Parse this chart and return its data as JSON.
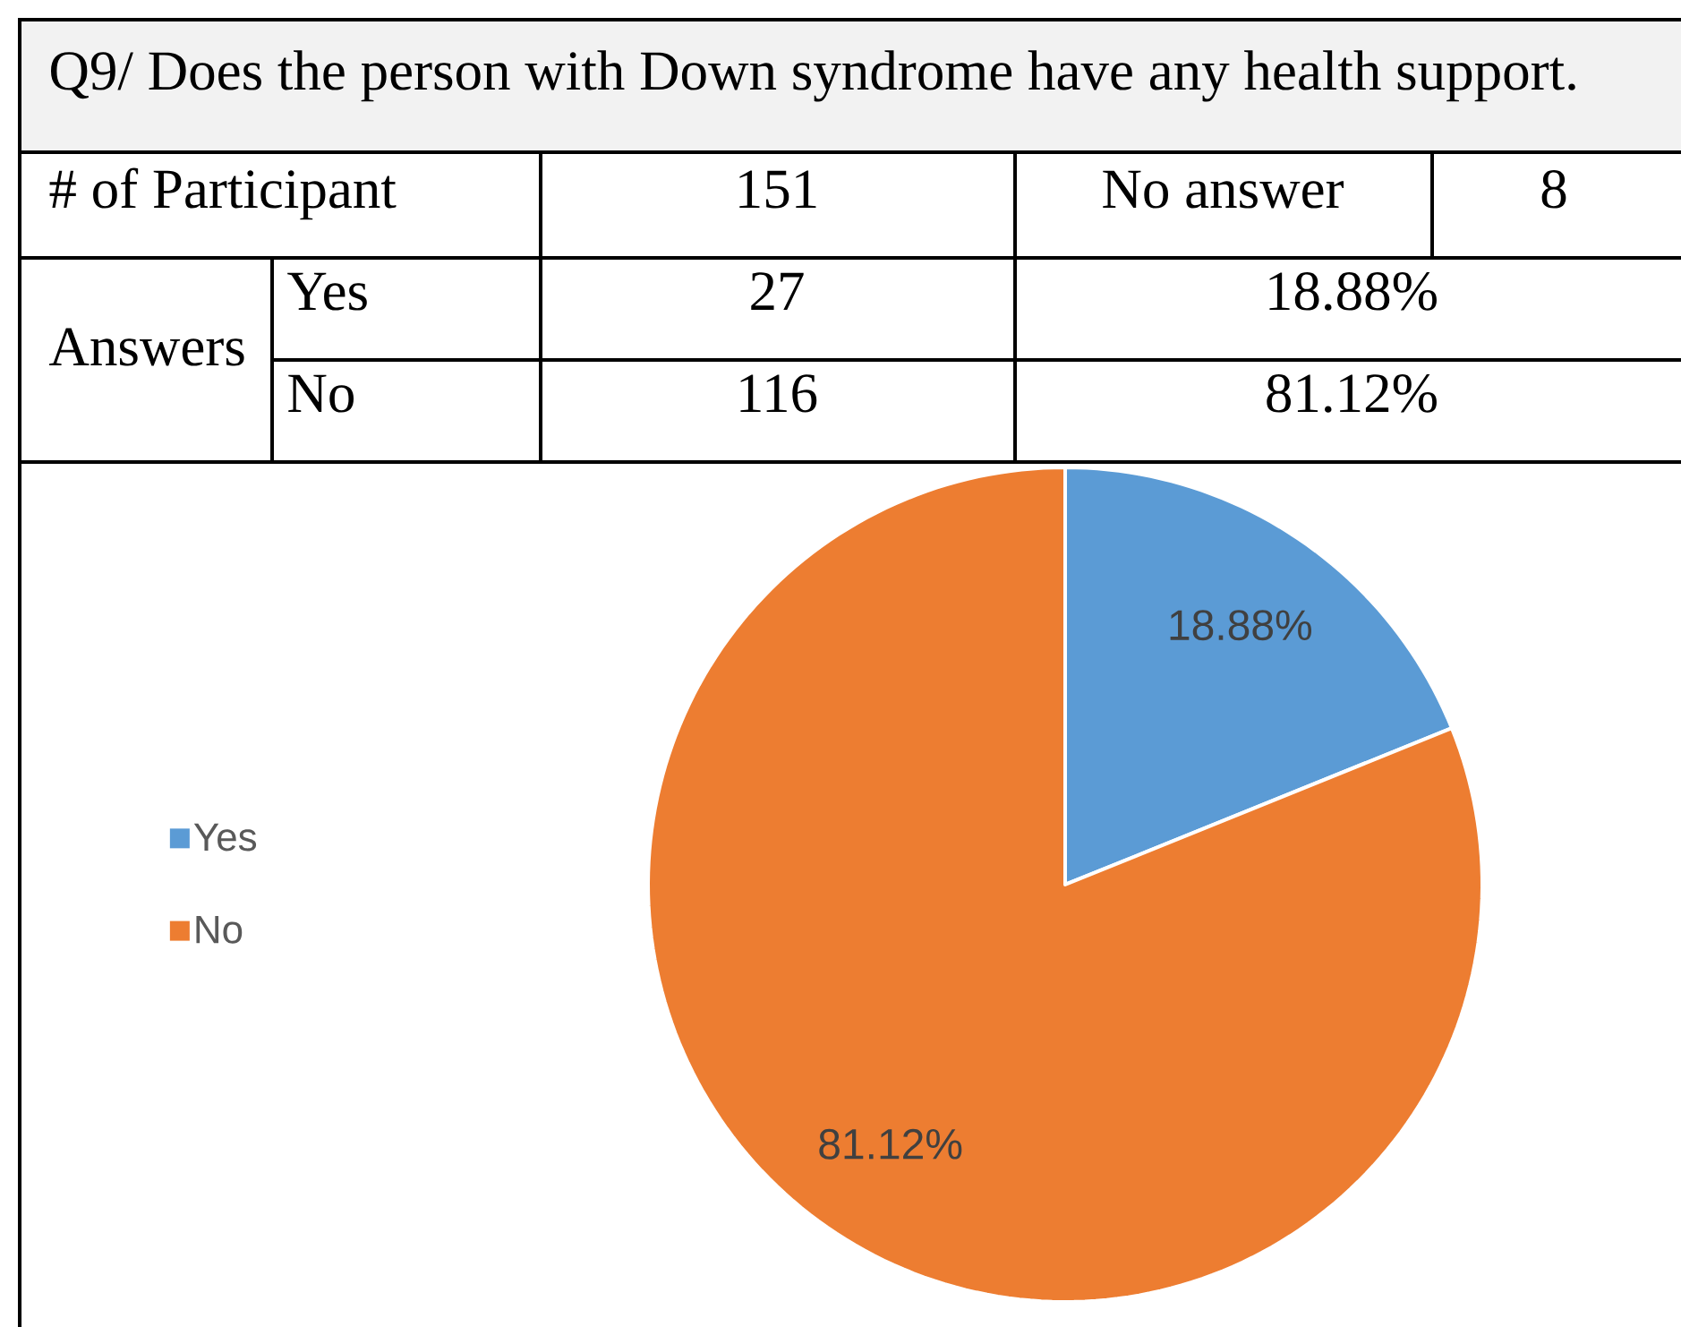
{
  "chart_data": {
    "type": "pie",
    "title": "Q9/ Does the person with Down syndrome have any health support.",
    "categories": [
      "Yes",
      "No"
    ],
    "values": [
      18.88,
      81.12
    ],
    "colors": [
      "#5b9bd5",
      "#ed7d31"
    ],
    "value_labels": [
      "18.88%",
      "81.12%"
    ],
    "legend": "left",
    "annotations": [
      "# of Participant",
      "151",
      "No answer",
      "8",
      "Answers",
      "Yes",
      "27",
      "18.88%",
      "No",
      "116",
      "81.12%"
    ]
  }
}
